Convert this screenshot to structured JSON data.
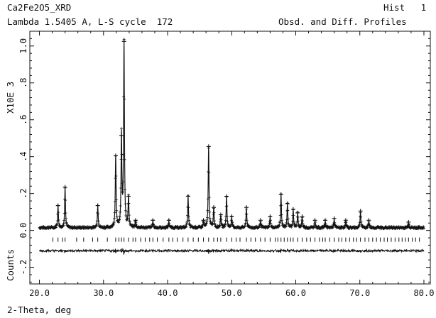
{
  "header": {
    "file_title": "Ca2Fe2O5_XRD",
    "hist_label": "Hist   1",
    "lambda_line": "Lambda 1.5405 A, L-S cycle  172",
    "profile_label": "Obsd. and Diff. Profiles"
  },
  "chart_data": {
    "type": "line",
    "title": "",
    "xlabel": "2-Theta, deg",
    "ylabel": "Counts",
    "ylabel_scale": "X10E  3",
    "xlim": [
      18.5,
      81.0
    ],
    "ylim": [
      -0.29,
      1.08
    ],
    "x_ticks": [
      "20.0",
      "30.0",
      "40.0",
      "50.0",
      "60.0",
      "70.0",
      "80.0"
    ],
    "y_ticks": [
      "-.2",
      "0.0",
      ".2",
      ".4",
      ".6",
      ".8",
      "1.0"
    ],
    "x_tick_values": [
      20,
      30,
      40,
      50,
      60,
      70,
      80
    ],
    "y_tick_values": [
      -0.2,
      0.0,
      0.2,
      0.4,
      0.6,
      0.8,
      1.0
    ],
    "baseline": 0.015,
    "difference_offset": -0.11,
    "peaks": [
      {
        "x": 22.9,
        "y": 0.13
      },
      {
        "x": 24.0,
        "y": 0.23
      },
      {
        "x": 29.1,
        "y": 0.13
      },
      {
        "x": 31.9,
        "y": 0.4
      },
      {
        "x": 32.8,
        "y": 0.51
      },
      {
        "x": 33.2,
        "y": 1.02
      },
      {
        "x": 33.9,
        "y": 0.18
      },
      {
        "x": 35.0,
        "y": 0.05
      },
      {
        "x": 37.7,
        "y": 0.05
      },
      {
        "x": 40.2,
        "y": 0.05
      },
      {
        "x": 43.2,
        "y": 0.18
      },
      {
        "x": 45.6,
        "y": 0.05
      },
      {
        "x": 46.4,
        "y": 0.45
      },
      {
        "x": 47.2,
        "y": 0.12
      },
      {
        "x": 48.3,
        "y": 0.08
      },
      {
        "x": 49.2,
        "y": 0.18
      },
      {
        "x": 50.0,
        "y": 0.07
      },
      {
        "x": 52.3,
        "y": 0.12
      },
      {
        "x": 54.5,
        "y": 0.05
      },
      {
        "x": 56.0,
        "y": 0.07
      },
      {
        "x": 57.7,
        "y": 0.19
      },
      {
        "x": 58.7,
        "y": 0.14
      },
      {
        "x": 59.6,
        "y": 0.11
      },
      {
        "x": 60.3,
        "y": 0.09
      },
      {
        "x": 61.0,
        "y": 0.07
      },
      {
        "x": 63.0,
        "y": 0.05
      },
      {
        "x": 64.6,
        "y": 0.05
      },
      {
        "x": 66.0,
        "y": 0.06
      },
      {
        "x": 67.8,
        "y": 0.05
      },
      {
        "x": 70.1,
        "y": 0.1
      },
      {
        "x": 71.4,
        "y": 0.05
      },
      {
        "x": 77.6,
        "y": 0.04
      }
    ],
    "reflection_marks": [
      22.1,
      22.9,
      23.6,
      24.0,
      25.8,
      26.9,
      28.3,
      29.1,
      30.6,
      31.9,
      32.4,
      32.8,
      33.2,
      33.9,
      34.6,
      35.0,
      35.8,
      36.5,
      37.2,
      37.7,
      38.4,
      39.3,
      40.2,
      40.8,
      41.5,
      42.4,
      43.2,
      44.0,
      44.8,
      45.6,
      46.4,
      47.2,
      47.8,
      48.3,
      49.2,
      50.0,
      50.7,
      51.3,
      52.3,
      53.0,
      53.7,
      54.5,
      55.2,
      56.0,
      56.8,
      57.2,
      57.7,
      58.2,
      58.7,
      59.2,
      59.6,
      60.3,
      61.0,
      61.7,
      62.3,
      63.0,
      63.7,
      64.2,
      64.6,
      65.3,
      66.0,
      66.7,
      67.2,
      67.8,
      68.4,
      69.0,
      69.5,
      70.1,
      70.8,
      71.4,
      72.0,
      72.6,
      73.2,
      73.8,
      74.3,
      74.9,
      75.5,
      76.1,
      76.6,
      77.1,
      77.6,
      78.2,
      78.7,
      79.3
    ]
  }
}
